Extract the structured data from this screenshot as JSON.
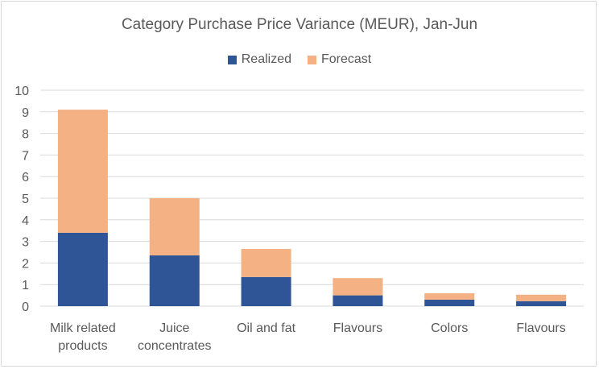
{
  "chart_data": {
    "type": "bar",
    "stacked": true,
    "title": "Category Purchase Price Variance (MEUR), Jan-Jun",
    "categories": [
      [
        "Milk related",
        "products"
      ],
      [
        "Juice",
        "concentrates"
      ],
      [
        "Oil and fat"
      ],
      [
        "Flavours"
      ],
      [
        "Colors"
      ],
      [
        "Flavours"
      ]
    ],
    "series": [
      {
        "name": "Realized",
        "color": "#2f5597",
        "values": [
          3.4,
          2.35,
          1.35,
          0.5,
          0.3,
          0.23
        ]
      },
      {
        "name": "Forecast",
        "color": "#f4b183",
        "values": [
          5.7,
          2.65,
          1.3,
          0.8,
          0.3,
          0.3
        ]
      }
    ],
    "ylim": [
      0,
      10
    ],
    "yticks": [
      0,
      1,
      2,
      3,
      4,
      5,
      6,
      7,
      8,
      9,
      10
    ],
    "grid": true,
    "legend_position": "top"
  }
}
